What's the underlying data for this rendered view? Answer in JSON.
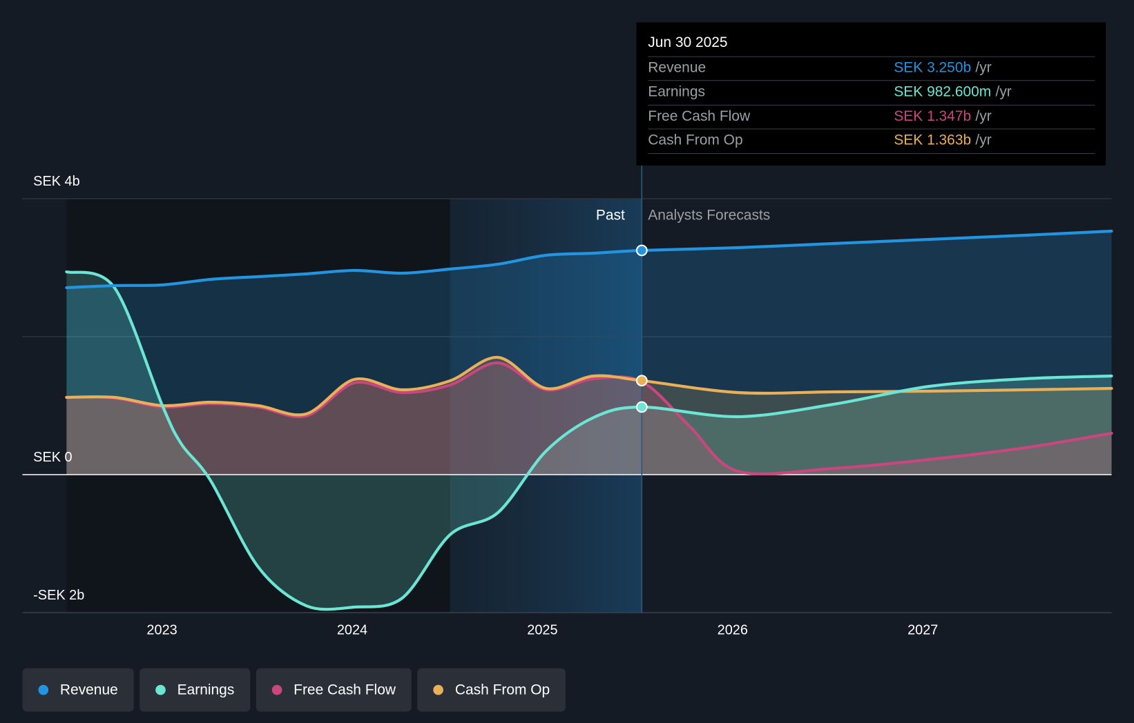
{
  "tooltip": {
    "date": "Jun 30 2025",
    "rows": [
      {
        "label": "Revenue",
        "value": "SEK 3.250b",
        "unit": "/yr",
        "color": "#2394df"
      },
      {
        "label": "Earnings",
        "value": "SEK 982.600m",
        "unit": "/yr",
        "color": "#6ce5d4"
      },
      {
        "label": "Free Cash Flow",
        "value": "SEK 1.347b",
        "unit": "/yr",
        "color": "#c9467f"
      },
      {
        "label": "Cash From Op",
        "value": "SEK 1.363b",
        "unit": "/yr",
        "color": "#e9b05a"
      }
    ]
  },
  "period_labels": {
    "past": "Past",
    "forecast": "Analysts Forecasts"
  },
  "legend": [
    {
      "label": "Revenue",
      "color": "#2394df"
    },
    {
      "label": "Earnings",
      "color": "#6ce5d4"
    },
    {
      "label": "Free Cash Flow",
      "color": "#c9467f"
    },
    {
      "label": "Cash From Op",
      "color": "#e9b05a"
    }
  ],
  "chart_data": {
    "type": "line",
    "title": "",
    "xlabel": "",
    "ylabel": "",
    "unit": "SEK b",
    "ylim": [
      -2,
      4
    ],
    "xlim": [
      2022.5,
      2027.95
    ],
    "y_ticks": [
      {
        "value": 4,
        "label": "SEK 4b"
      },
      {
        "value": 0,
        "label": "SEK 0"
      },
      {
        "value": -2,
        "label": "-SEK 2b"
      }
    ],
    "x_ticks": [
      {
        "value": 2023,
        "label": "2023"
      },
      {
        "value": 2024,
        "label": "2024"
      },
      {
        "value": 2025,
        "label": "2025"
      },
      {
        "value": 2026,
        "label": "2026"
      },
      {
        "value": 2027,
        "label": "2027"
      }
    ],
    "past_end": 2025.5,
    "highlight_start": 2024.5,
    "series": [
      {
        "name": "Revenue",
        "color": "#2394df",
        "x": [
          2022.5,
          2022.75,
          2023,
          2023.25,
          2023.5,
          2023.75,
          2024,
          2024.25,
          2024.5,
          2024.75,
          2025,
          2025.25,
          2025.5,
          2026,
          2026.5,
          2027,
          2027.5,
          2027.95
        ],
        "y": [
          2.71,
          2.74,
          2.75,
          2.83,
          2.87,
          2.91,
          2.96,
          2.92,
          2.98,
          3.05,
          3.18,
          3.21,
          3.25,
          3.29,
          3.35,
          3.41,
          3.47,
          3.53
        ]
      },
      {
        "name": "Earnings",
        "color": "#6ce5d4",
        "x": [
          2022.5,
          2022.75,
          2023,
          2023.1,
          2023.25,
          2023.5,
          2023.75,
          2024,
          2024.25,
          2024.5,
          2024.75,
          2025,
          2025.25,
          2025.5,
          2026,
          2026.5,
          2027,
          2027.5,
          2027.95
        ],
        "y": [
          2.94,
          2.71,
          1.0,
          0.44,
          -0.08,
          -1.34,
          -1.9,
          -1.92,
          -1.79,
          -0.87,
          -0.55,
          0.34,
          0.83,
          0.98,
          0.84,
          1.02,
          1.28,
          1.39,
          1.43
        ]
      },
      {
        "name": "Free Cash Flow",
        "color": "#c9467f",
        "x": [
          2022.5,
          2022.75,
          2023,
          2023.25,
          2023.5,
          2023.75,
          2024,
          2024.25,
          2024.5,
          2024.75,
          2025,
          2025.25,
          2025.5,
          2025.75,
          2026,
          2026.5,
          2027,
          2027.5,
          2027.95
        ],
        "y": [
          1.12,
          1.11,
          0.98,
          1.03,
          0.98,
          0.85,
          1.33,
          1.19,
          1.3,
          1.62,
          1.23,
          1.39,
          1.347,
          0.7,
          0.05,
          0.09,
          0.22,
          0.39,
          0.6
        ]
      },
      {
        "name": "Cash From Op",
        "color": "#e9b05a",
        "x": [
          2022.5,
          2022.75,
          2023,
          2023.25,
          2023.5,
          2023.75,
          2024,
          2024.25,
          2024.5,
          2024.75,
          2025,
          2025.25,
          2025.5,
          2026,
          2026.5,
          2027,
          2027.5,
          2027.95
        ],
        "y": [
          1.12,
          1.12,
          1.0,
          1.05,
          1.0,
          0.88,
          1.38,
          1.23,
          1.36,
          1.7,
          1.25,
          1.43,
          1.363,
          1.19,
          1.2,
          1.21,
          1.23,
          1.25
        ]
      }
    ]
  }
}
